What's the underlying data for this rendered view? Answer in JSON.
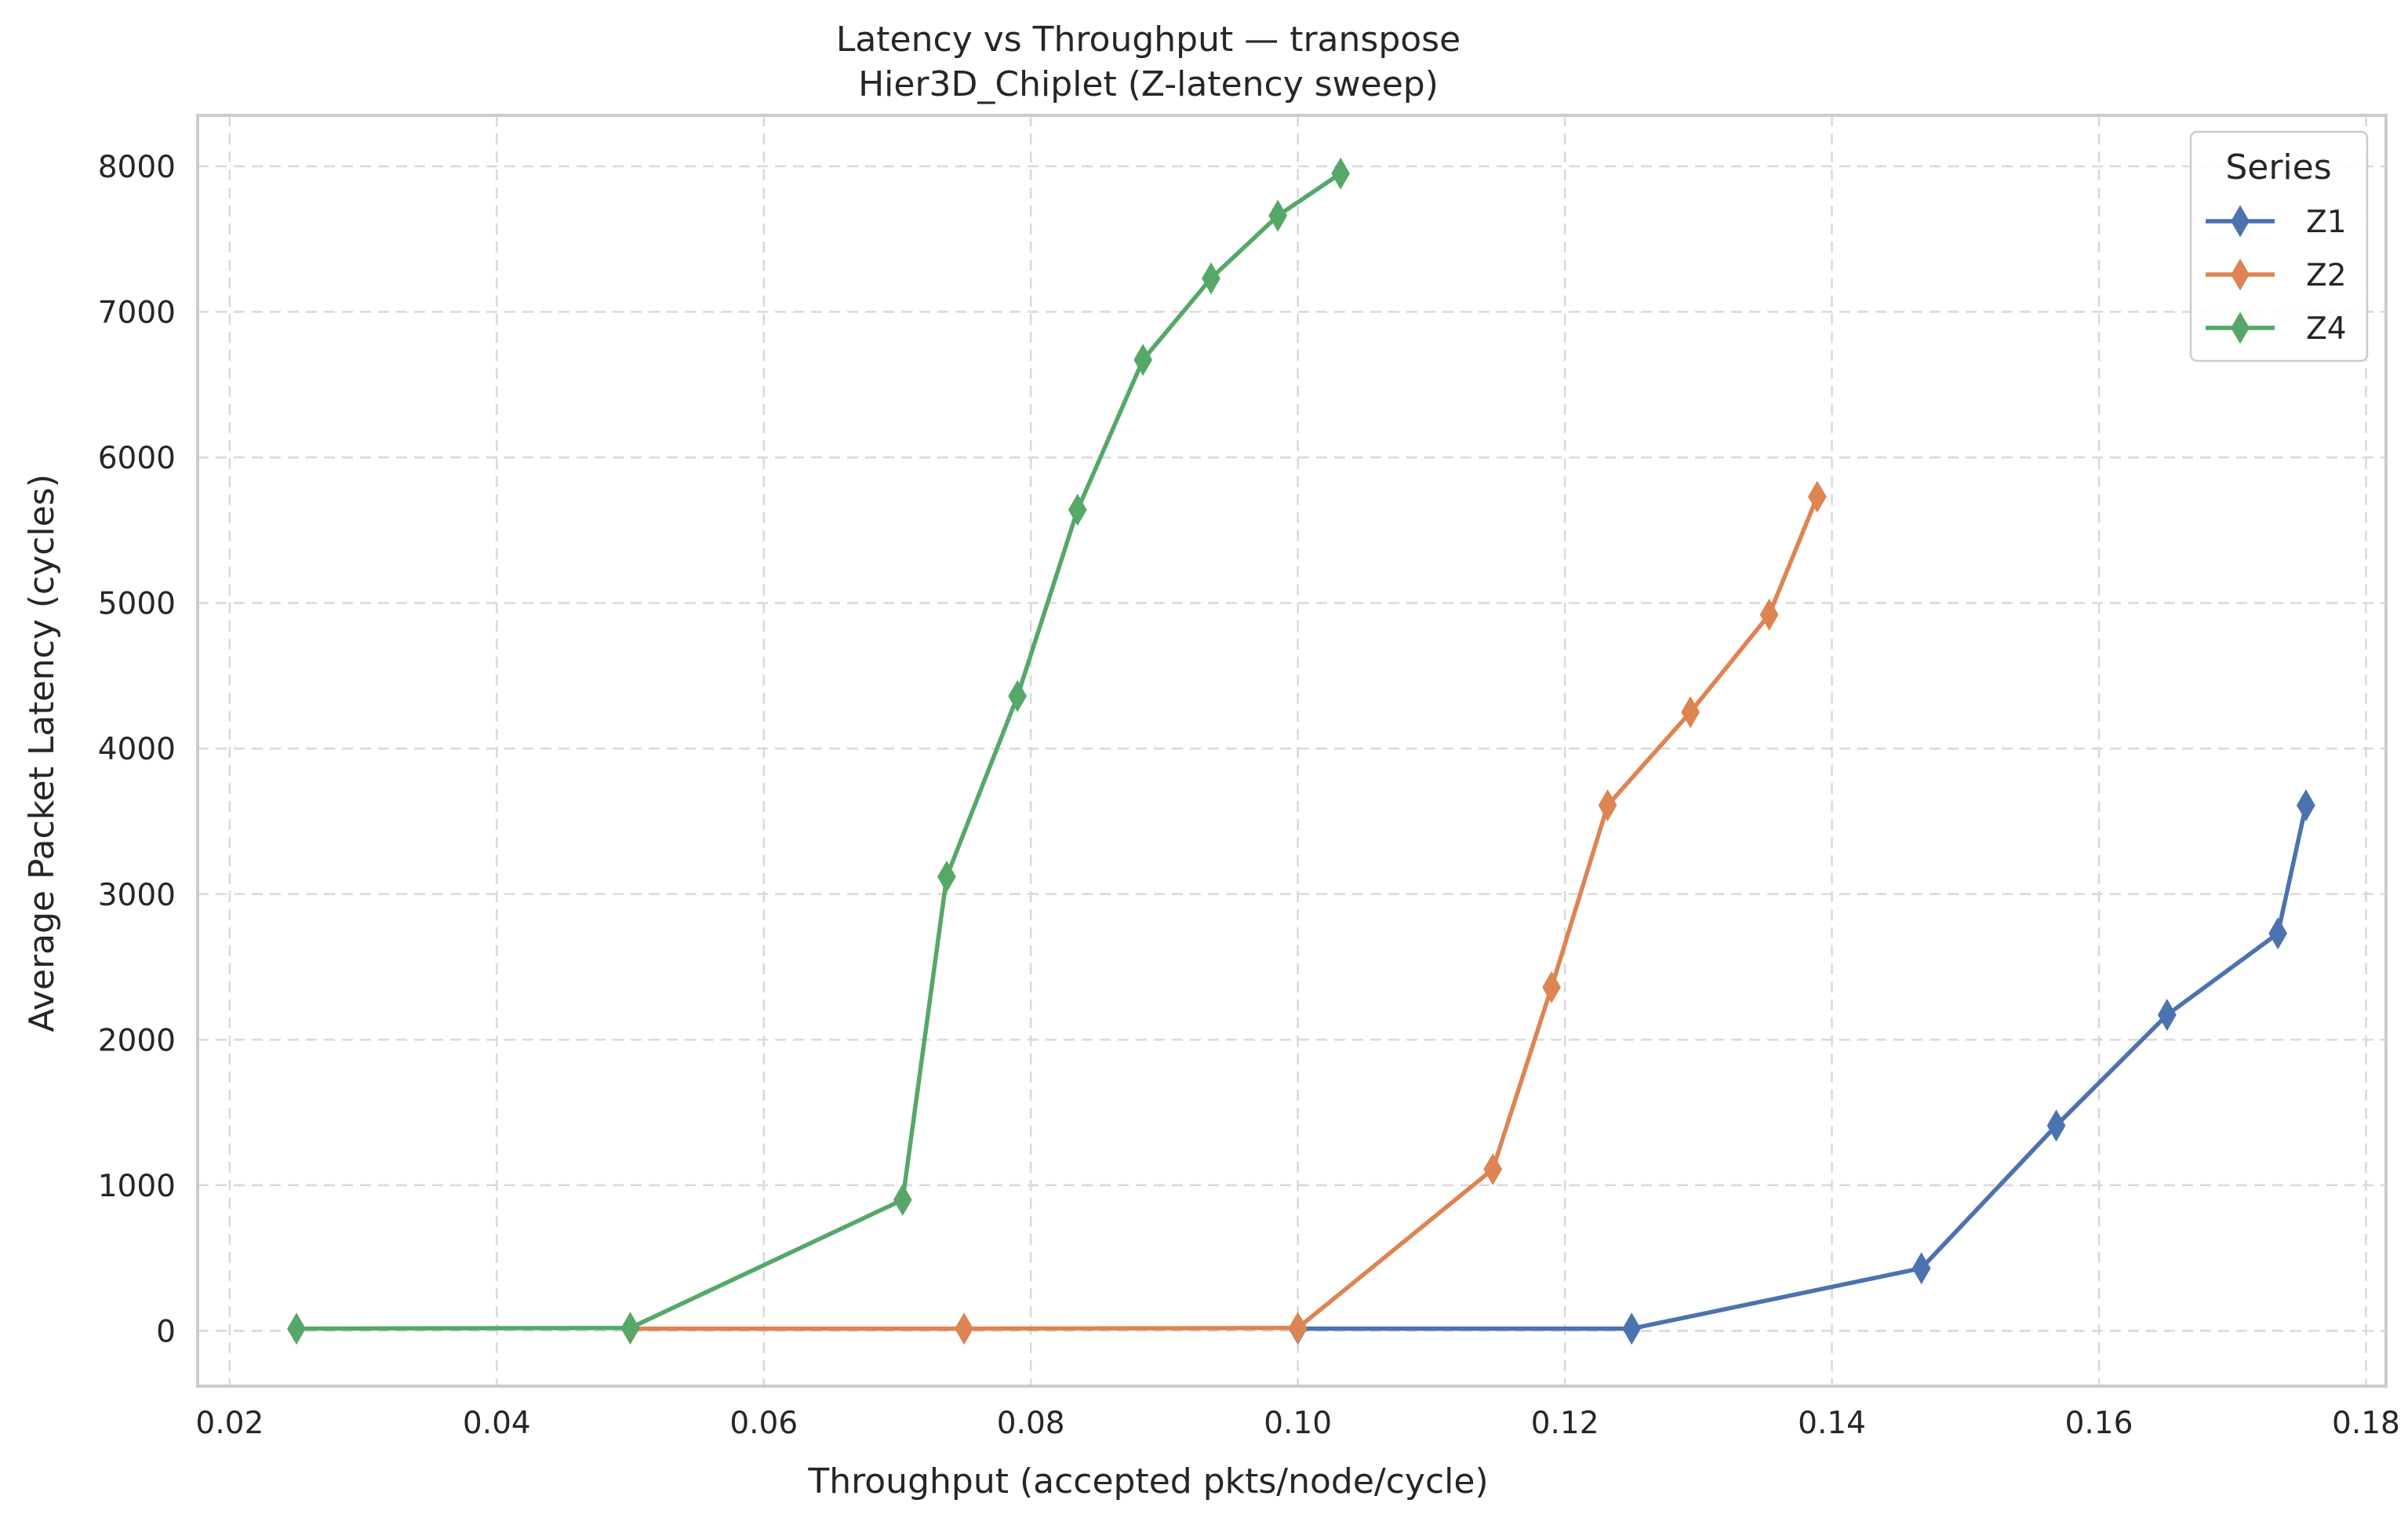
{
  "chart_data": {
    "type": "line",
    "title": "Latency vs Throughput — transpose",
    "subtitle": "Hier3D_Chiplet (Z-latency sweep)",
    "xlabel": "Throughput (accepted pkts/node/cycle)",
    "ylabel": "Average Packet Latency (cycles)",
    "xlim": [
      0.0176,
      0.1815
    ],
    "ylim": [
      -380,
      8350
    ],
    "x_ticks": [
      "0.02",
      "0.04",
      "0.06",
      "0.08",
      "0.10",
      "0.12",
      "0.14",
      "0.16",
      "0.18"
    ],
    "x_tick_values": [
      0.02,
      0.04,
      0.06,
      0.08,
      0.1,
      0.12,
      0.14,
      0.16,
      0.18
    ],
    "y_ticks": [
      "0",
      "1000",
      "2000",
      "3000",
      "4000",
      "5000",
      "6000",
      "7000",
      "8000"
    ],
    "y_tick_values": [
      0,
      1000,
      2000,
      3000,
      4000,
      5000,
      6000,
      7000,
      8000
    ],
    "grid": true,
    "marker": "thin-diamond",
    "legend": {
      "title": "Series",
      "placement": "top-right"
    },
    "series": [
      {
        "name": "Z1",
        "color": "#4c72b0",
        "x": [
          0.1,
          0.125,
          0.1467,
          0.1568,
          0.1651,
          0.1734,
          0.1755
        ],
        "y": [
          15,
          15,
          430,
          1410,
          2170,
          2730,
          3610
        ]
      },
      {
        "name": "Z2",
        "color": "#dd8452",
        "x": [
          0.05,
          0.075,
          0.1,
          0.1146,
          0.119,
          0.1232,
          0.1294,
          0.1353,
          0.1389
        ],
        "y": [
          15,
          15,
          20,
          1110,
          2360,
          3610,
          4250,
          4920,
          5730
        ]
      },
      {
        "name": "Z4",
        "color": "#55a868",
        "x": [
          0.025,
          0.05,
          0.0704,
          0.0737,
          0.079,
          0.0835,
          0.0884,
          0.0935,
          0.0985,
          0.1032
        ],
        "y": [
          15,
          20,
          900,
          3120,
          4360,
          5640,
          6670,
          7230,
          7660,
          7950
        ]
      }
    ]
  }
}
